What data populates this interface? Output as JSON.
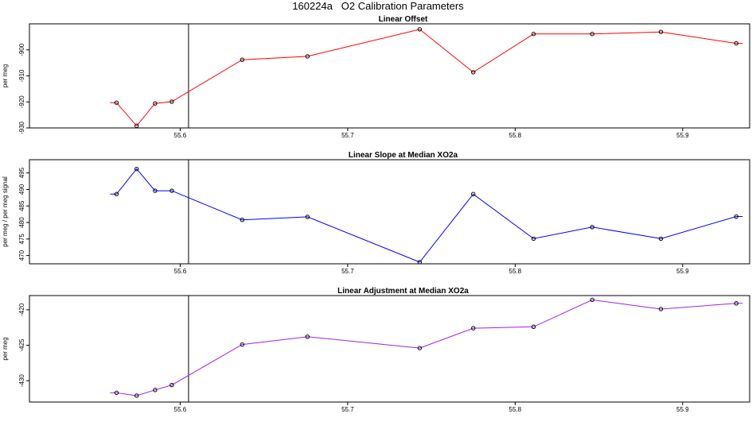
{
  "title": "160224a   O2 Calibration Parameters",
  "chart_data": [
    {
      "type": "line",
      "title": "Linear Offset",
      "ylabel": "per meg",
      "color": "#ff0000",
      "x": [
        55.562,
        55.574,
        55.585,
        55.595,
        55.637,
        55.676,
        55.743,
        55.775,
        55.811,
        55.846,
        55.887,
        55.932
      ],
      "values": [
        -920.3,
        -929.2,
        -920.6,
        -919.9,
        -903.8,
        -902.5,
        -892.1,
        -908.6,
        -893.9,
        -893.9,
        -893.1,
        -897.5
      ],
      "xlim": [
        55.51,
        55.94
      ],
      "ylim": [
        -930,
        -890
      ],
      "xticks": [
        55.6,
        55.7,
        55.8,
        55.9
      ],
      "xtick_labels": [
        "55.6",
        "55.7",
        "55.8",
        "55.9"
      ],
      "yticks": [
        -900,
        -910,
        -920,
        -930
      ],
      "ytick_labels": [
        "-900",
        "-910",
        "-920",
        "-930"
      ],
      "vline_x": 55.605
    },
    {
      "type": "line",
      "title": "Linear Slope at Median XO2a",
      "ylabel": "per meg / per meg signal",
      "color": "#0000ff",
      "x": [
        55.562,
        55.574,
        55.585,
        55.595,
        55.637,
        55.676,
        55.743,
        55.775,
        55.811,
        55.846,
        55.887,
        55.932
      ],
      "values": [
        488.6,
        496.2,
        489.6,
        489.6,
        480.8,
        481.7,
        468.0,
        488.6,
        475.1,
        478.6,
        475.1,
        481.8
      ],
      "xlim": [
        55.51,
        55.94
      ],
      "ylim": [
        467.5,
        499
      ],
      "xticks": [
        55.6,
        55.7,
        55.8,
        55.9
      ],
      "xtick_labels": [
        "55.6",
        "55.7",
        "55.8",
        "55.9"
      ],
      "yticks": [
        470,
        475,
        480,
        485,
        490,
        495
      ],
      "ytick_labels": [
        "470",
        "475",
        "480",
        "485",
        "490",
        "495"
      ],
      "vline_x": 55.605
    },
    {
      "type": "line",
      "title": "Linear Adjustment at Median XO2a",
      "ylabel": "per meg",
      "color": "#a020f0",
      "x": [
        55.562,
        55.574,
        55.585,
        55.595,
        55.637,
        55.676,
        55.743,
        55.775,
        55.811,
        55.846,
        55.887,
        55.932
      ],
      "values": [
        -431.7,
        -432.1,
        -431.3,
        -430.6,
        -424.9,
        -423.8,
        -425.4,
        -422.6,
        -422.4,
        -418.6,
        -419.9,
        -419.1
      ],
      "xlim": [
        55.51,
        55.94
      ],
      "ylim": [
        -433,
        -418
      ],
      "xticks": [
        55.6,
        55.7,
        55.8,
        55.9
      ],
      "xtick_labels": [
        "55.6",
        "55.7",
        "55.8",
        "55.9"
      ],
      "yticks": [
        -420,
        -425,
        -430
      ],
      "ytick_labels": [
        "-420",
        "-425",
        "-430"
      ],
      "vline_x": 55.605
    }
  ]
}
